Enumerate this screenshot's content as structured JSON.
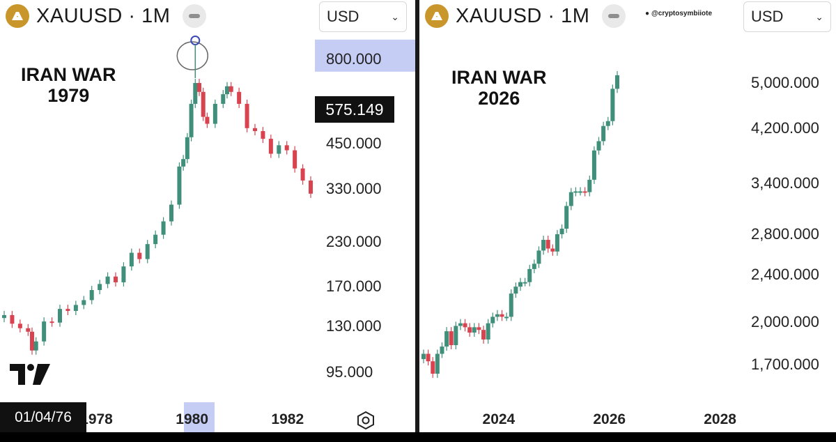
{
  "left": {
    "header": {
      "symbol": "XAUUSD · 1M",
      "currency": "USD"
    },
    "annotation": [
      "IRAN WAR",
      "1979"
    ],
    "price_tag": "575.149",
    "date_tag": "01/04/76",
    "colors": {
      "up": "#3f8f7a",
      "down": "#d9434f",
      "highlight": "#c5cdf5",
      "logo": "#c9962b"
    }
  },
  "right": {
    "header": {
      "symbol": "XAUUSD · 1M",
      "currency": "USD"
    },
    "annotation": [
      "IRAN WAR",
      "2026"
    ],
    "credit": "@cryptosymbiiote"
  },
  "chart_data": [
    {
      "type": "line",
      "series": [
        {
          "x": [
            "1976-01",
            "1976-03",
            "1976-05",
            "1976-07",
            "1976-08",
            "1976-09",
            "1976-11",
            "1977-01",
            "1977-03",
            "1977-05",
            "1977-07",
            "1977-09",
            "1977-11",
            "1978-01",
            "1978-03",
            "1978-05",
            "1978-07",
            "1978-09",
            "1978-11",
            "1979-01",
            "1979-03",
            "1979-05",
            "1979-07",
            "1979-09",
            "1979-10",
            "1979-11",
            "1979-12",
            "1980-01",
            "1980-02",
            "1980-03",
            "1980-04",
            "1980-06",
            "1980-08",
            "1980-09",
            "1980-10",
            "1980-12",
            "1981-02",
            "1981-04",
            "1981-06",
            "1981-08",
            "1981-10",
            "1981-12",
            "1982-02",
            "1982-04",
            "1982-06"
          ],
          "values": [
            140,
            132,
            128,
            125,
            110,
            117,
            134,
            133,
            146,
            144,
            150,
            155,
            166,
            173,
            182,
            175,
            195,
            214,
            205,
            227,
            242,
            265,
            297,
            385,
            405,
            470,
            590,
            680,
            640,
            540,
            515,
            590,
            630,
            665,
            640,
            590,
            500,
            490,
            465,
            420,
            445,
            430,
            380,
            350,
            320
          ]
        }
      ],
      "xlabel": "",
      "ylabel": "",
      "x_ticks": [
        "1978",
        "1980",
        "1982"
      ],
      "y_ticks": [
        "800.000",
        "450.000",
        "330.000",
        "230.000",
        "170.000",
        "130.000",
        "95.000"
      ],
      "ylim": [
        90,
        900
      ],
      "scale": "log"
    },
    {
      "type": "line",
      "series": [
        {
          "x": [
            "2022-08",
            "2022-09",
            "2022-10",
            "2022-11",
            "2022-12",
            "2023-01",
            "2023-02",
            "2023-03",
            "2023-04",
            "2023-05",
            "2023-06",
            "2023-07",
            "2023-08",
            "2023-09",
            "2023-10",
            "2023-11",
            "2023-12",
            "2024-01",
            "2024-02",
            "2024-03",
            "2024-04",
            "2024-05",
            "2024-06",
            "2024-07",
            "2024-08",
            "2024-09",
            "2024-10",
            "2024-11",
            "2024-12",
            "2025-01",
            "2025-02",
            "2025-03",
            "2025-04",
            "2025-05",
            "2025-06",
            "2025-07",
            "2025-08",
            "2025-09",
            "2025-10",
            "2025-11",
            "2025-12",
            "2026-01",
            "2026-02"
          ],
          "values": [
            1770,
            1720,
            1640,
            1770,
            1820,
            1930,
            1830,
            1970,
            1990,
            1960,
            1920,
            1960,
            1940,
            1870,
            1990,
            2040,
            2060,
            2040,
            2040,
            2230,
            2290,
            2330,
            2330,
            2450,
            2500,
            2630,
            2740,
            2650,
            2620,
            2800,
            2860,
            3120,
            3290,
            3300,
            3300,
            3290,
            3450,
            3860,
            4000,
            4240,
            4320,
            4890,
            5150
          ]
        }
      ],
      "xlabel": "",
      "ylabel": "",
      "x_ticks": [
        "2024",
        "2026",
        "2028"
      ],
      "y_ticks": [
        "5,000.000",
        "4,200.000",
        "3,400.000",
        "2,800.000",
        "2,400.000",
        "2,000.000",
        "1,700.000"
      ],
      "ylim": [
        1580,
        5700
      ],
      "scale": "log"
    }
  ]
}
